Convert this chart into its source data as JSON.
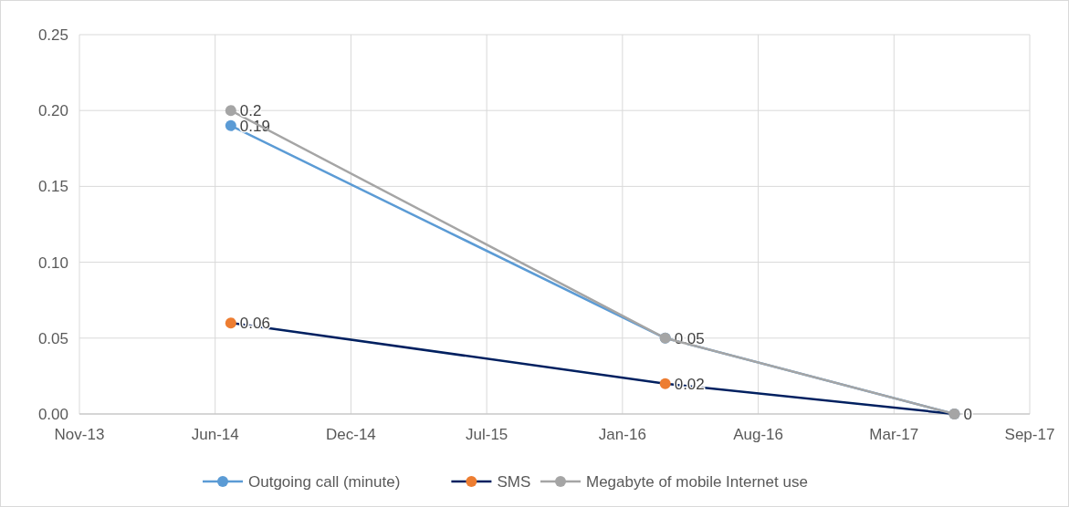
{
  "chart_data": {
    "type": "line",
    "x": [
      "2014-07-01",
      "2016-04-01",
      "2017-06-01"
    ],
    "series": [
      {
        "name": "Outgoing call (minute)",
        "color": "#5b9bd5",
        "values": [
          0.19,
          0.05,
          0
        ],
        "value_labels": [
          "0.19",
          "0.05",
          "0"
        ]
      },
      {
        "name": "SMS",
        "color": "#002060",
        "colors": [
          "#ed7d31",
          "#ed7d31",
          "#a5a5a5"
        ],
        "values": [
          0.06,
          0.02,
          0
        ],
        "value_labels": [
          "0.06",
          "0.02",
          null
        ]
      },
      {
        "name": "Megabyte of mobile Internet use",
        "color": "#a5a5a5",
        "values": [
          0.2,
          0.05,
          0
        ],
        "value_labels": [
          "0.2",
          null,
          null
        ]
      }
    ],
    "xlim": [
      "2013-11-20",
      "2017-09-20"
    ],
    "xticks": [
      {
        "value": "2013-11-20",
        "label": "Nov-13"
      },
      {
        "value": "2014-06-08",
        "label": "Jun-14"
      },
      {
        "value": "2014-12-25",
        "label": "Dec-14"
      },
      {
        "value": "2015-07-13",
        "label": "Jul-15"
      },
      {
        "value": "2016-01-29",
        "label": "Jan-16"
      },
      {
        "value": "2016-08-16",
        "label": "Aug-16"
      },
      {
        "value": "2017-03-04",
        "label": "Mar-17"
      },
      {
        "value": "2017-09-20",
        "label": "Sep-17"
      }
    ],
    "ylim": [
      0,
      0.25
    ],
    "yticks": [
      {
        "value": 0,
        "label": "0.00"
      },
      {
        "value": 0.05,
        "label": "0.05"
      },
      {
        "value": 0.1,
        "label": "0.10"
      },
      {
        "value": 0.15,
        "label": "0.15"
      },
      {
        "value": 0.2,
        "label": "0.20"
      },
      {
        "value": 0.25,
        "label": "0.25"
      }
    ],
    "grid": true,
    "legend": "bottom",
    "marker": "circle",
    "line_style": "solid"
  }
}
